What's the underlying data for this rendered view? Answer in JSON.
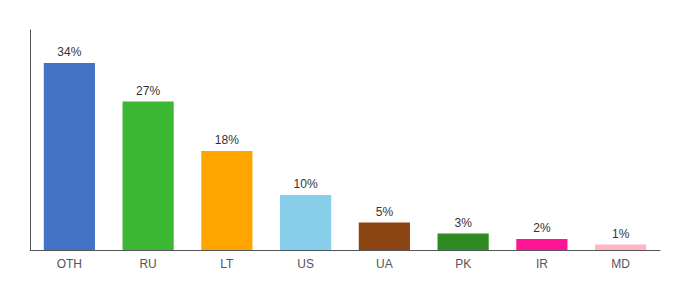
{
  "chart_data": {
    "type": "bar",
    "categories": [
      "OTH",
      "RU",
      "LT",
      "US",
      "UA",
      "PK",
      "IR",
      "MD"
    ],
    "values": [
      34,
      27,
      18,
      10,
      5,
      3,
      2,
      1
    ],
    "value_labels": [
      "34%",
      "27%",
      "18%",
      "10%",
      "5%",
      "3%",
      "2%",
      "1%"
    ],
    "colors": [
      "#4472C4",
      "#3CB834",
      "#FFA500",
      "#87CEEB",
      "#8B4513",
      "#2E8B22",
      "#FF1493",
      "#FFB6C1"
    ],
    "ylim": [
      0,
      40
    ],
    "data_labels": true,
    "tick_labels": "x",
    "grid": false
  }
}
